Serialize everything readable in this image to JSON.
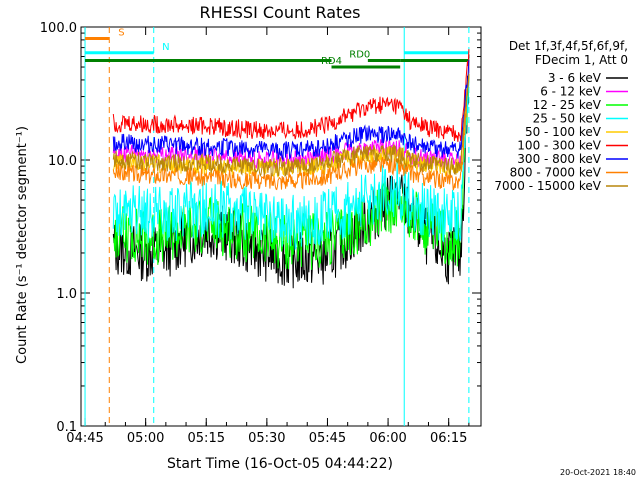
{
  "chart_data": {
    "type": "line",
    "title": "RHESSI Count Rates",
    "xlabel": "Start Time (16-Oct-05 04:44:22)",
    "ylabel": "Count Rate (s⁻¹ detector segment⁻¹)",
    "y_scale": "log",
    "ylim": [
      0.1,
      100.0
    ],
    "xlim": [
      "04:44:22",
      "06:23:00"
    ],
    "x_ticks": [
      "04:45",
      "05:00",
      "05:15",
      "05:30",
      "05:45",
      "06:00",
      "06:15"
    ],
    "y_ticks": [
      "0.1",
      "1.0",
      "10.0",
      "100.0"
    ],
    "grid": false,
    "legend_position": "right",
    "legend_header": [
      "Det 1f,3f,4f,5f,6f,9f,",
      "FDecim 1, Att 0"
    ],
    "timestamp": "20-Oct-2021 18:40",
    "series": [
      {
        "name": "3 - 6 keV",
        "color": "#000000",
        "x": [
          "04:52",
          "04:56",
          "05:00",
          "05:05",
          "05:10",
          "05:15",
          "05:20",
          "05:25",
          "05:30",
          "05:35",
          "05:40",
          "05:45",
          "05:50",
          "05:55",
          "06:00",
          "06:03",
          "06:06",
          "06:10",
          "06:15",
          "06:18",
          "06:20"
        ],
        "values": [
          2.2,
          2.1,
          2.0,
          2.1,
          2.6,
          3.0,
          2.8,
          2.3,
          2.0,
          1.8,
          1.8,
          1.9,
          2.6,
          3.6,
          5.0,
          5.2,
          3.6,
          2.5,
          1.9,
          1.9,
          50.0
        ]
      },
      {
        "name": "6 - 12 keV",
        "color": "#ff00ff",
        "x": [
          "04:52",
          "04:56",
          "05:00",
          "05:05",
          "05:10",
          "05:15",
          "05:20",
          "05:25",
          "05:30",
          "05:35",
          "05:40",
          "05:45",
          "05:50",
          "05:55",
          "06:00",
          "06:03",
          "06:06",
          "06:10",
          "06:15",
          "06:18",
          "06:20"
        ],
        "values": [
          11.0,
          11.2,
          11.0,
          11.0,
          11.0,
          10.8,
          10.6,
          10.2,
          10.0,
          10.0,
          10.2,
          10.8,
          11.8,
          12.3,
          12.3,
          12.0,
          10.8,
          10.2,
          9.8,
          9.8,
          50.0
        ]
      },
      {
        "name": "12 - 25 keV",
        "color": "#00ff00",
        "x": [
          "04:52",
          "04:56",
          "05:00",
          "05:05",
          "05:10",
          "05:15",
          "05:20",
          "05:25",
          "05:30",
          "05:35",
          "05:40",
          "05:45",
          "05:50",
          "05:55",
          "06:00",
          "06:03",
          "06:06",
          "06:10",
          "06:15",
          "06:18",
          "06:20"
        ],
        "values": [
          2.8,
          2.8,
          2.6,
          2.7,
          3.0,
          3.3,
          3.1,
          2.8,
          2.5,
          2.4,
          2.4,
          2.5,
          2.9,
          3.6,
          4.6,
          4.8,
          3.8,
          3.0,
          2.6,
          2.6,
          52.0
        ]
      },
      {
        "name": "25 - 50 keV",
        "color": "#00ffff",
        "x": [
          "04:52",
          "04:56",
          "05:00",
          "05:05",
          "05:10",
          "05:15",
          "05:20",
          "05:25",
          "05:30",
          "05:35",
          "05:40",
          "05:45",
          "05:50",
          "05:55",
          "06:00",
          "06:03",
          "06:06",
          "06:10",
          "06:15",
          "06:18",
          "06:20"
        ],
        "values": [
          3.8,
          4.0,
          3.9,
          3.8,
          4.1,
          4.4,
          4.2,
          3.9,
          3.6,
          3.5,
          3.6,
          3.8,
          4.3,
          5.2,
          6.0,
          5.8,
          4.8,
          4.2,
          3.8,
          3.8,
          54.0
        ]
      },
      {
        "name": "50 - 100 keV",
        "color": "#ffcc00",
        "x": [
          "04:52",
          "04:56",
          "05:00",
          "05:05",
          "05:10",
          "05:15",
          "05:20",
          "05:25",
          "05:30",
          "05:35",
          "05:40",
          "05:45",
          "05:50",
          "05:55",
          "06:00",
          "06:03",
          "06:06",
          "06:10",
          "06:15",
          "06:18",
          "06:20"
        ],
        "values": [
          9.5,
          9.6,
          9.5,
          9.3,
          9.2,
          9.0,
          8.9,
          8.7,
          8.6,
          8.6,
          8.8,
          9.2,
          10.2,
          11.0,
          11.2,
          10.8,
          9.6,
          9.2,
          8.8,
          8.8,
          50.0
        ]
      },
      {
        "name": "100 - 300 keV",
        "color": "#ff0000",
        "x": [
          "04:52",
          "04:56",
          "05:00",
          "05:05",
          "05:10",
          "05:15",
          "05:20",
          "05:25",
          "05:30",
          "05:35",
          "05:40",
          "05:45",
          "05:50",
          "05:55",
          "06:00",
          "06:03",
          "06:06",
          "06:10",
          "06:15",
          "06:18",
          "06:20"
        ],
        "values": [
          19.0,
          19.0,
          18.5,
          18.5,
          18.0,
          18.0,
          17.5,
          17.0,
          16.5,
          16.5,
          17.0,
          18.0,
          22.0,
          25.0,
          26.0,
          25.0,
          18.5,
          17.5,
          16.0,
          16.0,
          62.0
        ]
      },
      {
        "name": "300 - 800 keV",
        "color": "#0000ff",
        "x": [
          "04:52",
          "04:56",
          "05:00",
          "05:05",
          "05:10",
          "05:15",
          "05:20",
          "05:25",
          "05:30",
          "05:35",
          "05:40",
          "05:45",
          "05:50",
          "05:55",
          "06:00",
          "06:03",
          "06:06",
          "06:10",
          "06:15",
          "06:18",
          "06:20"
        ],
        "values": [
          13.5,
          13.5,
          13.2,
          13.0,
          12.8,
          12.6,
          12.4,
          12.0,
          11.8,
          11.8,
          12.0,
          12.8,
          14.5,
          15.5,
          15.5,
          15.0,
          13.0,
          12.3,
          11.8,
          11.8,
          55.0
        ]
      },
      {
        "name": "800 - 7000 keV",
        "color": "#ff8000",
        "x": [
          "04:52",
          "04:56",
          "05:00",
          "05:05",
          "05:10",
          "05:15",
          "05:20",
          "05:25",
          "05:30",
          "05:35",
          "05:40",
          "05:45",
          "05:50",
          "05:55",
          "06:00",
          "06:03",
          "06:06",
          "06:10",
          "06:15",
          "06:18",
          "06:20"
        ],
        "values": [
          8.0,
          8.0,
          7.8,
          7.7,
          7.6,
          7.4,
          7.3,
          7.1,
          7.0,
          7.0,
          7.2,
          7.6,
          8.6,
          9.2,
          9.2,
          8.9,
          7.8,
          7.3,
          6.9,
          6.9,
          45.0
        ]
      },
      {
        "name": "7000 - 15000 keV",
        "color": "#b8860b",
        "x": [
          "04:52",
          "04:56",
          "05:00",
          "05:05",
          "05:10",
          "05:15",
          "05:20",
          "05:25",
          "05:30",
          "05:35",
          "05:40",
          "05:45",
          "05:50",
          "05:55",
          "06:00",
          "06:03",
          "06:06",
          "06:10",
          "06:15",
          "06:18",
          "06:20"
        ],
        "values": [
          10.0,
          10.0,
          9.8,
          9.6,
          9.5,
          9.4,
          9.2,
          9.0,
          8.9,
          8.9,
          9.0,
          9.6,
          10.6,
          11.4,
          11.4,
          11.0,
          9.8,
          9.3,
          9.0,
          9.0,
          48.0
        ]
      }
    ],
    "state_bars": [
      {
        "label": "S",
        "color": "#ff8000",
        "x_start": "04:45",
        "x_end": "04:51",
        "y": 82.0
      },
      {
        "label": "N",
        "color": "#00ffff",
        "x_start": "04:45",
        "x_end": "05:02",
        "y": 64.0
      },
      {
        "label": "N",
        "color": "#00ffff",
        "x_start": "06:04",
        "x_end": "06:20",
        "y": 64.0
      },
      {
        "label": "RD0",
        "color": "#008000",
        "x_start": "04:45",
        "x_end": "05:46",
        "y": 56.0
      },
      {
        "label": "RD0",
        "color": "#008000",
        "x_start": "05:55",
        "x_end": "06:03",
        "y": 56.0
      },
      {
        "label": "RD0",
        "color": "#008000",
        "x_start": "06:03",
        "x_end": "06:20",
        "y": 56.0
      },
      {
        "label": "RD4",
        "color": "#008000",
        "x_start": "05:46",
        "x_end": "06:03",
        "y": 50.0
      }
    ],
    "vertical_lines": [
      {
        "x": "04:45",
        "color": "#00ffff",
        "style": "solid"
      },
      {
        "x": "04:51",
        "color": "#ff8000",
        "style": "dashed"
      },
      {
        "x": "05:02",
        "color": "#00ffff",
        "style": "dashed"
      },
      {
        "x": "06:04",
        "color": "#00ffff",
        "style": "solid"
      },
      {
        "x": "06:20",
        "color": "#00ffff",
        "style": "dashed"
      }
    ],
    "annotations": [
      {
        "text": "S",
        "x": "04:54"
      },
      {
        "text": "N",
        "x": "05:05"
      },
      {
        "text": "RD0",
        "x": "05:53"
      },
      {
        "text": "RD4",
        "x": "05:46"
      }
    ]
  }
}
